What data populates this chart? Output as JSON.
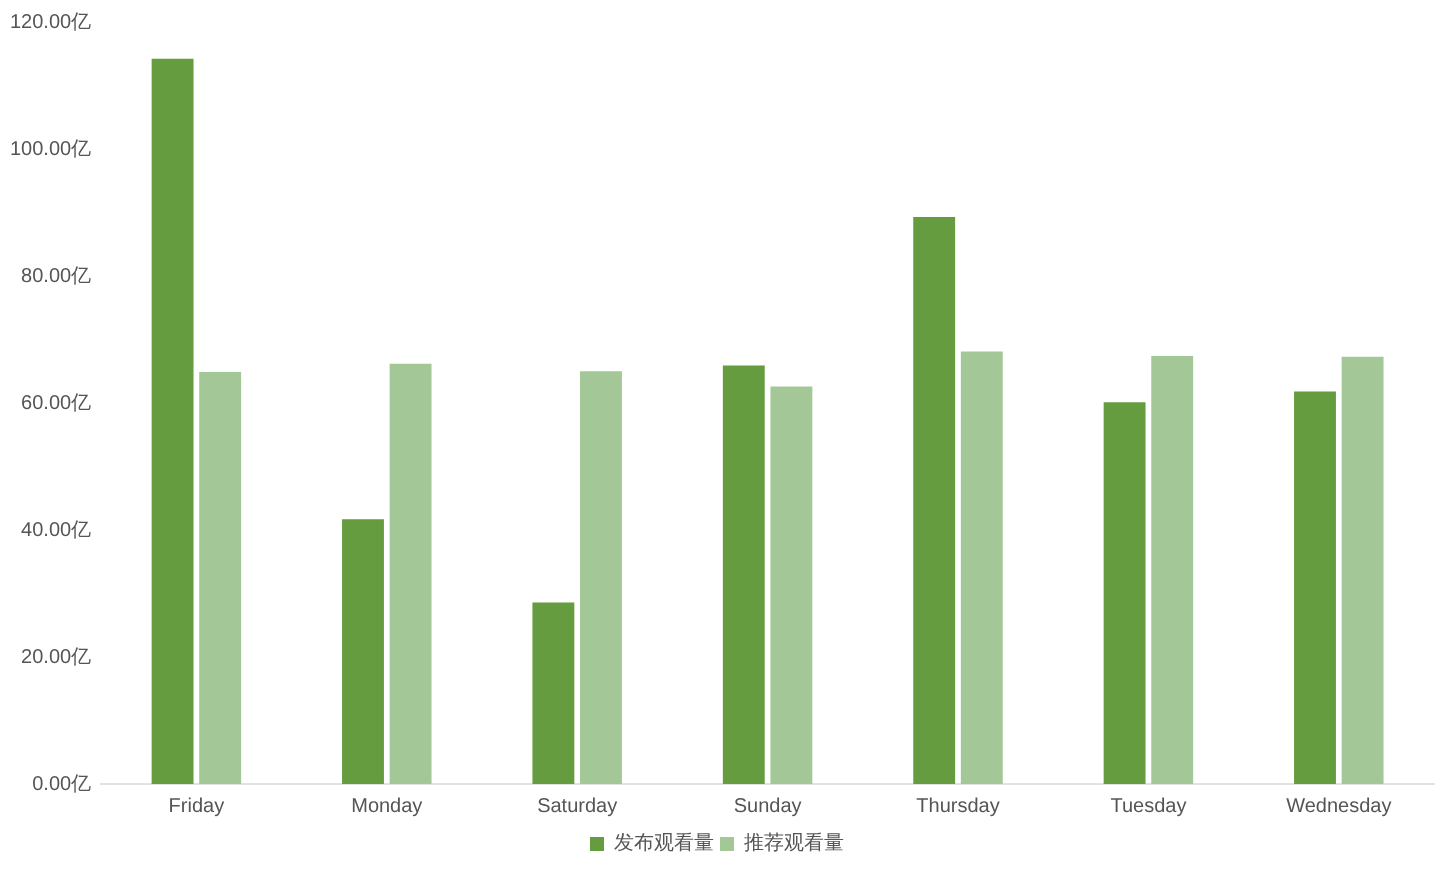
{
  "chart_data": {
    "type": "bar",
    "categories": [
      "Friday",
      "Monday",
      "Saturday",
      "Sunday",
      "Thursday",
      "Tuesday",
      "Wednesday"
    ],
    "series": [
      {
        "name": "发布观看量",
        "color": "#659c3f",
        "values": [
          114.2,
          41.7,
          28.6,
          65.9,
          89.3,
          60.1,
          61.8
        ]
      },
      {
        "name": "推荐观看量",
        "color": "#a3c796",
        "values": [
          64.9,
          66.2,
          65,
          62.6,
          68.1,
          67.4,
          67.3
        ]
      }
    ],
    "ylim": [
      0,
      120
    ],
    "yticks": [
      {
        "value": 0,
        "label": "0.00亿"
      },
      {
        "value": 20,
        "label": "20.00亿"
      },
      {
        "value": 40,
        "label": "40.00亿"
      },
      {
        "value": 60,
        "label": "60.00亿"
      },
      {
        "value": 80,
        "label": "80.00亿"
      },
      {
        "value": 100,
        "label": "100.00亿"
      },
      {
        "value": 120,
        "label": "120.00亿"
      }
    ],
    "legend": "bottom"
  }
}
